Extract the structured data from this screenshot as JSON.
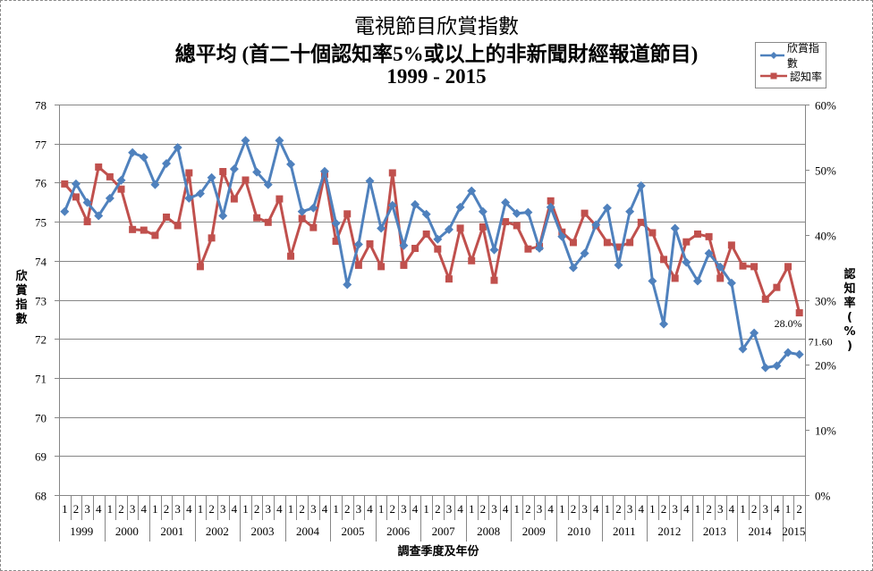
{
  "chart_data": {
    "type": "line",
    "title": [
      "電視節目欣賞指數",
      "總平均 (首二十個認知率5%或以上的非新聞財經報道節目)",
      "1999 - 2015"
    ],
    "xlabel": "調查季度及年份",
    "ylabel": "欣賞指數",
    "y2label": "認知率(%)",
    "ylim": [
      68,
      78
    ],
    "y2lim": [
      0,
      60
    ],
    "yticks": [
      "68",
      "69",
      "70",
      "71",
      "72",
      "73",
      "74",
      "75",
      "76",
      "77",
      "78"
    ],
    "y2ticks": [
      "0%",
      "10%",
      "20%",
      "30%",
      "40%",
      "50%",
      "60%"
    ],
    "grid": "horizontal",
    "legend_position": "top-right",
    "quarters": [
      "1",
      "2",
      "3",
      "4",
      "1",
      "2",
      "3",
      "4",
      "1",
      "2",
      "3",
      "4",
      "1",
      "2",
      "3",
      "4",
      "1",
      "2",
      "3",
      "4",
      "1",
      "2",
      "3",
      "4",
      "1",
      "2",
      "3",
      "4",
      "1",
      "2",
      "3",
      "4",
      "1",
      "2",
      "3",
      "4",
      "1",
      "2",
      "3",
      "4",
      "1",
      "2",
      "3",
      "4",
      "1",
      "2",
      "3",
      "4",
      "1",
      "2",
      "3",
      "4",
      "1",
      "2",
      "3",
      "4",
      "1",
      "2",
      "3",
      "4",
      "1",
      "2",
      "3",
      "4",
      "1",
      "2"
    ],
    "years": [
      {
        "label": "1999",
        "quarters": 4
      },
      {
        "label": "2000",
        "quarters": 4
      },
      {
        "label": "2001",
        "quarters": 4
      },
      {
        "label": "2002",
        "quarters": 4
      },
      {
        "label": "2003",
        "quarters": 4
      },
      {
        "label": "2004",
        "quarters": 4
      },
      {
        "label": "2005",
        "quarters": 4
      },
      {
        "label": "2006",
        "quarters": 4
      },
      {
        "label": "2007",
        "quarters": 4
      },
      {
        "label": "2008",
        "quarters": 4
      },
      {
        "label": "2009",
        "quarters": 4
      },
      {
        "label": "2010",
        "quarters": 4
      },
      {
        "label": "2011",
        "quarters": 4
      },
      {
        "label": "2012",
        "quarters": 4
      },
      {
        "label": "2013",
        "quarters": 4
      },
      {
        "label": "2014",
        "quarters": 4
      },
      {
        "label": "2015",
        "quarters": 2
      }
    ],
    "series": [
      {
        "name": "欣賞指數",
        "axis": "left",
        "color": "#4f81bd",
        "marker": "diamond",
        "values": [
          75.26,
          75.97,
          75.49,
          75.15,
          75.6,
          76.06,
          76.77,
          76.65,
          75.95,
          76.49,
          76.9,
          75.6,
          75.72,
          76.13,
          75.15,
          76.35,
          77.08,
          76.27,
          75.95,
          77.08,
          76.47,
          75.26,
          75.35,
          76.29,
          74.96,
          73.39,
          74.42,
          76.04,
          74.83,
          75.42,
          74.39,
          75.44,
          75.19,
          74.55,
          74.8,
          75.37,
          75.79,
          75.26,
          74.28,
          75.49,
          75.21,
          75.24,
          74.32,
          75.37,
          74.62,
          73.82,
          74.19,
          74.92,
          75.35,
          73.89,
          75.26,
          75.92,
          73.48,
          72.38,
          74.83,
          73.96,
          73.48,
          74.19,
          73.84,
          73.43,
          71.74,
          72.15,
          71.26,
          71.31,
          71.65,
          71.6
        ],
        "last_label": "71.60"
      },
      {
        "name": "認知率",
        "axis": "right",
        "color": "#c0504d",
        "marker": "square",
        "values": [
          47.8,
          45.8,
          42.0,
          50.4,
          48.9,
          47.0,
          40.8,
          40.7,
          39.9,
          42.7,
          41.4,
          49.5,
          35.1,
          39.5,
          49.7,
          45.5,
          48.4,
          42.6,
          41.9,
          45.5,
          36.7,
          42.5,
          41.1,
          49.3,
          39.0,
          43.2,
          35.3,
          38.6,
          35.1,
          49.5,
          35.3,
          37.9,
          40.1,
          37.8,
          33.2,
          41.0,
          36.0,
          41.2,
          33.0,
          42.0,
          41.4,
          37.8,
          38.2,
          45.2,
          40.4,
          38.8,
          43.3,
          41.4,
          38.8,
          38.1,
          38.8,
          41.9,
          40.3,
          36.2,
          33.3,
          38.9,
          40.1,
          39.7,
          33.3,
          38.4,
          35.2,
          35.1,
          30.1,
          31.9,
          35.1,
          28.0
        ],
        "last_label": "28.0%"
      }
    ]
  }
}
